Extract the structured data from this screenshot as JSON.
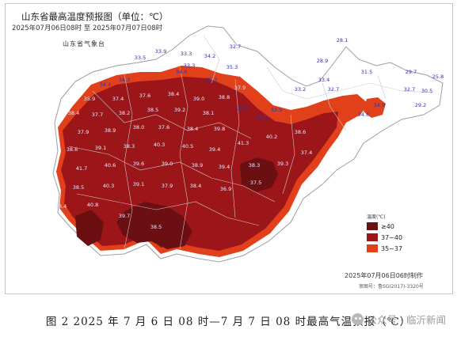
{
  "map": {
    "title": "山东省最高温度预报图（单位：℃）",
    "valid_range": "2025年07月06日08时  至  2025年07月07日08时",
    "issuer": "山东省气象台",
    "colors": {
      "above_40": "#6b0f12",
      "range_37_40": "#9c1619",
      "range_35_37": "#e1401a",
      "below_35": "#ffffff",
      "border": "#b9b9b9"
    },
    "legend": {
      "title": "温度(℃)",
      "items": [
        {
          "label": "≥40",
          "color": "#6b0f12"
        },
        {
          "label": "37~40",
          "color": "#9c1619"
        },
        {
          "label": "35~37",
          "color": "#e1401a"
        }
      ]
    },
    "made_at": "2025年07月06日06时制作",
    "approval": "审图号：鲁SG(2017)-3320号",
    "cool_points": [
      {
        "value": "32.7"
      },
      {
        "value": "28.1"
      },
      {
        "value": "33.5"
      },
      {
        "value": "33.9"
      },
      {
        "value": "33.3"
      },
      {
        "value": "34.2"
      },
      {
        "value": "33.3"
      },
      {
        "value": "28.9"
      },
      {
        "value": "34.3"
      },
      {
        "value": "34.4"
      },
      {
        "value": "34.6"
      },
      {
        "value": "35.3"
      },
      {
        "value": "35.3"
      },
      {
        "value": "33.4"
      },
      {
        "value": "31.5"
      },
      {
        "value": "29.7"
      },
      {
        "value": "25.8"
      },
      {
        "value": "33.2"
      },
      {
        "value": "32.7"
      },
      {
        "value": "30.5"
      },
      {
        "value": "29.2"
      },
      {
        "value": "34.7"
      },
      {
        "value": "33.5"
      },
      {
        "value": "34.6"
      },
      {
        "value": "34.9"
      },
      {
        "value": "32.7"
      },
      {
        "value": "34.6"
      }
    ],
    "hot_points": [
      {
        "value": "35.9"
      },
      {
        "value": "37.4"
      },
      {
        "value": "37.6"
      },
      {
        "value": "38.4"
      },
      {
        "value": "39.0"
      },
      {
        "value": "38.8"
      },
      {
        "value": "37.9"
      },
      {
        "value": "38.4"
      },
      {
        "value": "37.7"
      },
      {
        "value": "38.2"
      },
      {
        "value": "38.5"
      },
      {
        "value": "39.2"
      },
      {
        "value": "38.1"
      },
      {
        "value": "37.9"
      },
      {
        "value": "38.9"
      },
      {
        "value": "38.0"
      },
      {
        "value": "37.6"
      },
      {
        "value": "38.4"
      },
      {
        "value": "39.8"
      },
      {
        "value": "38.6"
      },
      {
        "value": "39.1"
      },
      {
        "value": "38.3"
      },
      {
        "value": "40.3"
      },
      {
        "value": "40.5"
      },
      {
        "value": "39.4"
      },
      {
        "value": "41.3"
      },
      {
        "value": "40.2"
      },
      {
        "value": "38.6"
      },
      {
        "value": "41.7"
      },
      {
        "value": "40.6"
      },
      {
        "value": "39.6"
      },
      {
        "value": "39.0"
      },
      {
        "value": "38.9"
      },
      {
        "value": "39.4"
      },
      {
        "value": "38.3"
      },
      {
        "value": "39.3"
      },
      {
        "value": "37.4"
      },
      {
        "value": "38.5"
      },
      {
        "value": "40.3"
      },
      {
        "value": "39.1"
      },
      {
        "value": "37.9"
      },
      {
        "value": "38.4"
      },
      {
        "value": "36.9"
      },
      {
        "value": "37.5"
      },
      {
        "value": "38.4"
      },
      {
        "value": "40.8"
      },
      {
        "value": "39.7"
      },
      {
        "value": "38.5"
      }
    ]
  },
  "caption": "图 2  2025 年 7 月 6 日 08 时—7 月 7 日 08 时最高气温预报（℃）",
  "watermark": {
    "text": "公众号 · 临沂新闻"
  }
}
